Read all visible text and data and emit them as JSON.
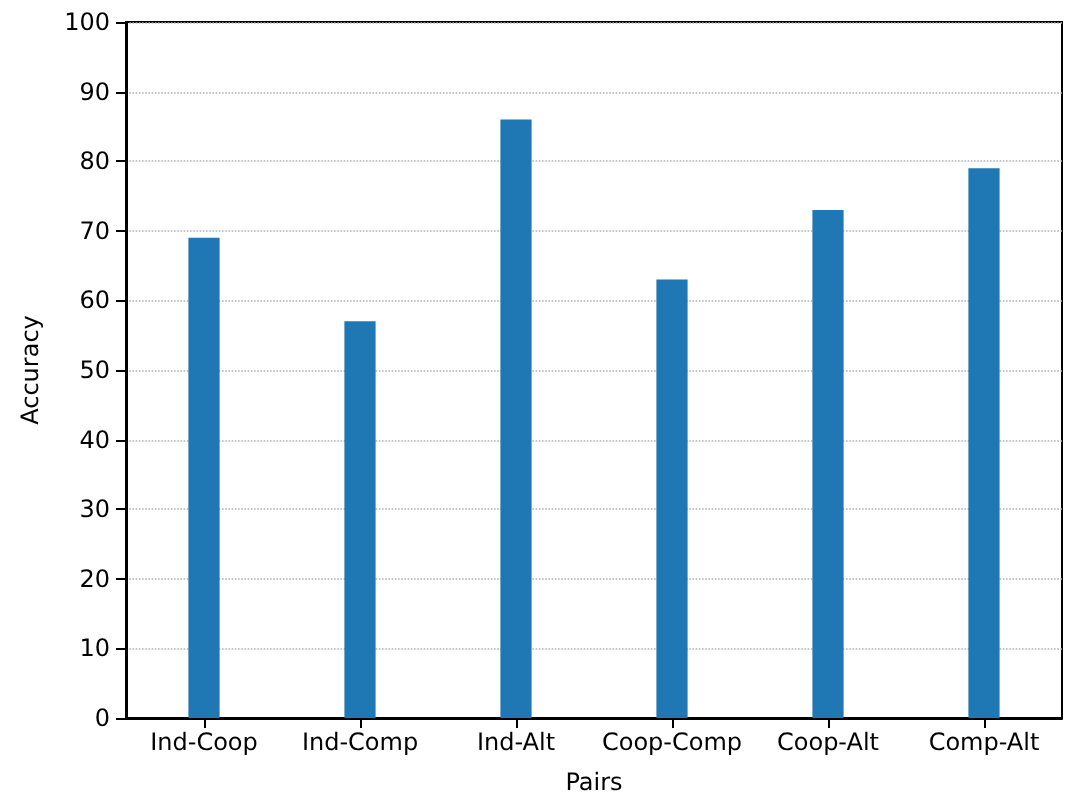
{
  "chart_data": {
    "type": "bar",
    "xlabel": "Pairs",
    "ylabel": "Accuracy",
    "categories": [
      "Ind-Coop",
      "Ind-Comp",
      "Ind-Alt",
      "Coop-Comp",
      "Coop-Alt",
      "Comp-Alt"
    ],
    "values": [
      69,
      57,
      86,
      63,
      73,
      79
    ],
    "color": "#1f77b4",
    "ylim": [
      0,
      100
    ],
    "yticks": [
      0,
      10,
      20,
      30,
      40,
      50,
      60,
      70,
      80,
      90,
      100
    ],
    "grid": "y"
  }
}
